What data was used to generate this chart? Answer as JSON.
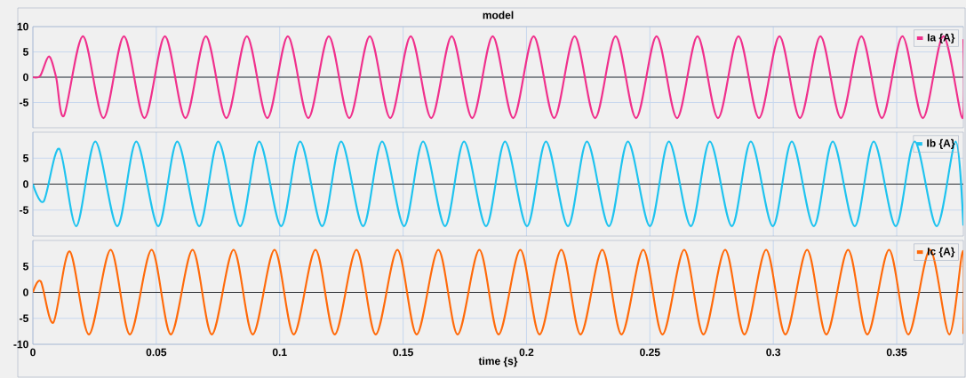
{
  "chart_data": [
    {
      "type": "line",
      "title": "model",
      "xlim": [
        0,
        0.377
      ],
      "ylim": [
        -10,
        10
      ],
      "xticks": [
        0,
        0.05,
        0.1,
        0.15,
        0.2,
        0.25,
        0.3,
        0.35
      ],
      "yticks": [
        -5,
        0,
        5,
        10
      ],
      "tick_labels": "y",
      "grid": true,
      "legend": "top right",
      "ref_lines": [
        {
          "axis": "y",
          "value": 0,
          "color": "#000000"
        }
      ],
      "series": [
        {
          "name": "Ia {A}",
          "color": "#f0308c",
          "x": [
            0,
            0.003,
            0.0065,
            0.0094,
            0.0126,
            0.0203,
            0.0286,
            0.0369,
            0.0452,
            0.0535,
            0.0618,
            0.0701,
            0.0784,
            0.0867,
            0.095,
            0.1033,
            0.1116,
            0.1199,
            0.1282,
            0.1365,
            0.1448,
            0.1531,
            0.1614,
            0.1697,
            0.178,
            0.1863,
            0.1946,
            0.2029,
            0.2112,
            0.2195,
            0.2278,
            0.2361,
            0.2444,
            0.2527,
            0.261,
            0.2693,
            0.2776,
            0.2859,
            0.2942,
            0.3025,
            0.3108,
            0.3191,
            0.3274,
            0.3357,
            0.344,
            0.3523,
            0.3606,
            0.3689,
            0.3766,
            0.377
          ],
          "values": [
            0,
            0.3,
            4.1,
            0,
            -7.6,
            8.1,
            -8.1,
            8.1,
            -8.1,
            8.1,
            -8.1,
            8.1,
            -8.1,
            8.1,
            -8.1,
            8.1,
            -8.1,
            8.1,
            -8.1,
            8.1,
            -8.1,
            8.1,
            -8.1,
            8.1,
            -8.1,
            8.1,
            -8.1,
            8.1,
            -8.1,
            8.1,
            -8.1,
            8.1,
            -8.1,
            8.1,
            -8.1,
            8.1,
            -8.1,
            8.1,
            -8.1,
            8.1,
            -8.1,
            8.1,
            -8.1,
            8.1,
            -8.1,
            8.1,
            -8.1,
            8.1,
            -8.1,
            7.5
          ]
        }
      ]
    },
    {
      "type": "line",
      "xlim": [
        0,
        0.377
      ],
      "ylim": [
        -10,
        10
      ],
      "xticks": [
        0,
        0.05,
        0.1,
        0.15,
        0.2,
        0.25,
        0.3,
        0.35
      ],
      "yticks": [
        -5,
        0,
        5
      ],
      "tick_labels": "y",
      "grid": true,
      "legend": "top right",
      "ref_lines": [
        {
          "axis": "y",
          "value": 0,
          "color": "#000000"
        }
      ],
      "series": [
        {
          "name": "Ib {A}",
          "color": "#1ec3ef",
          "x": [
            0,
            0.0044,
            0.0107,
            0.0176,
            0.0253,
            0.0342,
            0.0419,
            0.0508,
            0.0585,
            0.0674,
            0.0751,
            0.084,
            0.0917,
            0.1006,
            0.1083,
            0.1172,
            0.1249,
            0.1338,
            0.1415,
            0.1504,
            0.1581,
            0.167,
            0.1747,
            0.1836,
            0.1913,
            0.2002,
            0.2079,
            0.2168,
            0.2245,
            0.2334,
            0.2411,
            0.25,
            0.2577,
            0.2666,
            0.2743,
            0.2832,
            0.2909,
            0.2998,
            0.3075,
            0.3164,
            0.3241,
            0.333,
            0.3407,
            0.3496,
            0.3573,
            0.3662,
            0.3739,
            0.377
          ],
          "values": [
            0,
            -3.3,
            6.8,
            -8.1,
            8.2,
            -8.1,
            8.2,
            -8.1,
            8.2,
            -8.1,
            8.2,
            -8.1,
            8.2,
            -8.1,
            8.2,
            -8.1,
            8.2,
            -8.1,
            8.2,
            -8.1,
            8.2,
            -8.1,
            8.2,
            -8.1,
            8.2,
            -8.1,
            8.2,
            -8.1,
            8.2,
            -8.1,
            8.2,
            -8.1,
            8.2,
            -8.1,
            8.2,
            -8.1,
            8.2,
            -8.1,
            8.2,
            -8.1,
            8.2,
            -8.1,
            8.2,
            -8.1,
            8.2,
            -8.1,
            8.2,
            -8
          ]
        }
      ]
    },
    {
      "type": "line",
      "xlabel": "time {s}",
      "xlim": [
        0,
        0.377
      ],
      "ylim": [
        -10,
        10
      ],
      "xticks": [
        0,
        0.05,
        0.1,
        0.15,
        0.2,
        0.25,
        0.3,
        0.35
      ],
      "yticks": [
        -10,
        -5,
        0,
        5
      ],
      "grid": true,
      "legend": "top right",
      "ref_lines": [
        {
          "axis": "y",
          "value": 0,
          "color": "#000000"
        }
      ],
      "series": [
        {
          "name": "Ic {A}",
          "color": "#ff6a0a",
          "x": [
            0,
            0.0032,
            0.0083,
            0.0149,
            0.0227,
            0.0315,
            0.0393,
            0.0481,
            0.0559,
            0.0647,
            0.0725,
            0.0813,
            0.0891,
            0.0979,
            0.1057,
            0.1145,
            0.1223,
            0.1311,
            0.1389,
            0.1477,
            0.1555,
            0.1643,
            0.1721,
            0.1809,
            0.1887,
            0.1975,
            0.2053,
            0.2141,
            0.2219,
            0.2307,
            0.2385,
            0.2473,
            0.2551,
            0.2639,
            0.2717,
            0.2805,
            0.2883,
            0.2971,
            0.3049,
            0.3137,
            0.3215,
            0.3303,
            0.3381,
            0.3469,
            0.3547,
            0.3635,
            0.3713,
            0.3768,
            0.377
          ],
          "values": [
            0,
            2.1,
            -5.8,
            7.9,
            -8.1,
            8.2,
            -8.1,
            8.2,
            -8.1,
            8.2,
            -8.1,
            8.2,
            -8.1,
            8.2,
            -8.1,
            8.2,
            -8.1,
            8.2,
            -8.1,
            8.2,
            -8.1,
            8.2,
            -8.1,
            8.2,
            -8.1,
            8.2,
            -8.1,
            8.2,
            -8.1,
            8.2,
            -8.1,
            8.2,
            -8.1,
            8.2,
            -8.1,
            8.2,
            -8.1,
            8.2,
            -8.1,
            8.2,
            -8.1,
            8.2,
            -8.1,
            8.2,
            -8.1,
            8.2,
            -8.1,
            8,
            -8
          ]
        }
      ]
    }
  ]
}
